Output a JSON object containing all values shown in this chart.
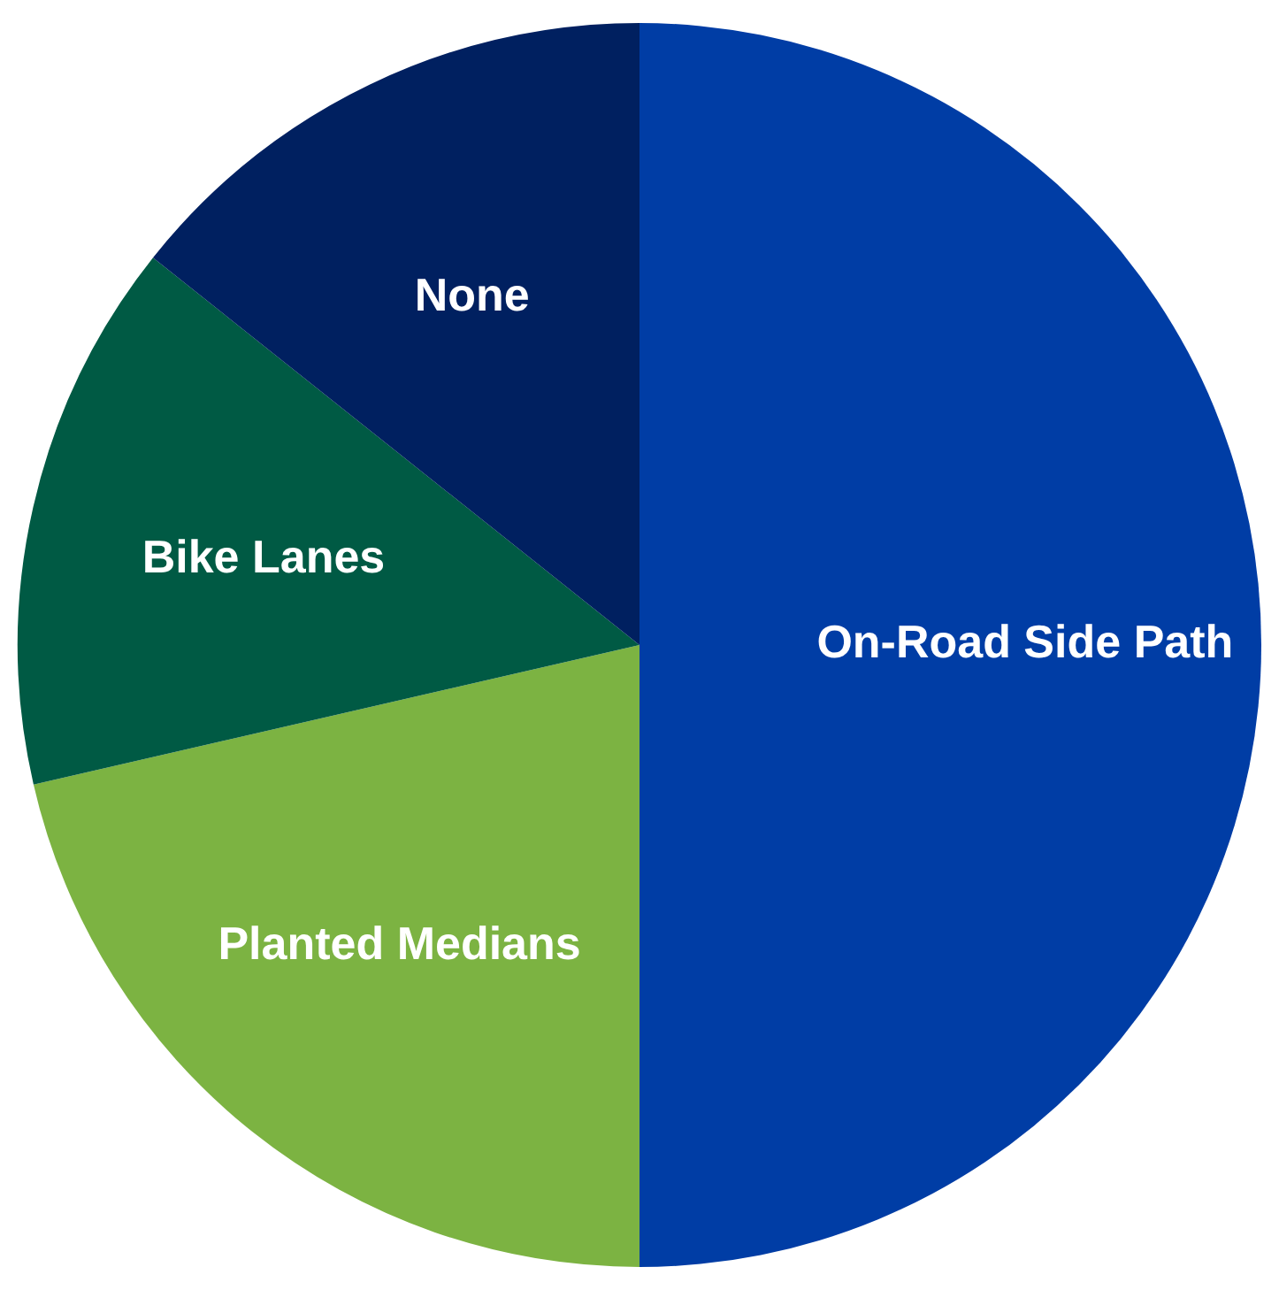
{
  "chart_data": {
    "type": "pie",
    "categories": [
      "On-Road Side Path",
      "Planted Medians",
      "Bike Lanes",
      "None"
    ],
    "values": [
      50,
      21.4,
      14.3,
      14.3
    ],
    "colors": [
      "#003da5",
      "#7cb342",
      "#005a44",
      "#002060"
    ],
    "legend": false
  }
}
